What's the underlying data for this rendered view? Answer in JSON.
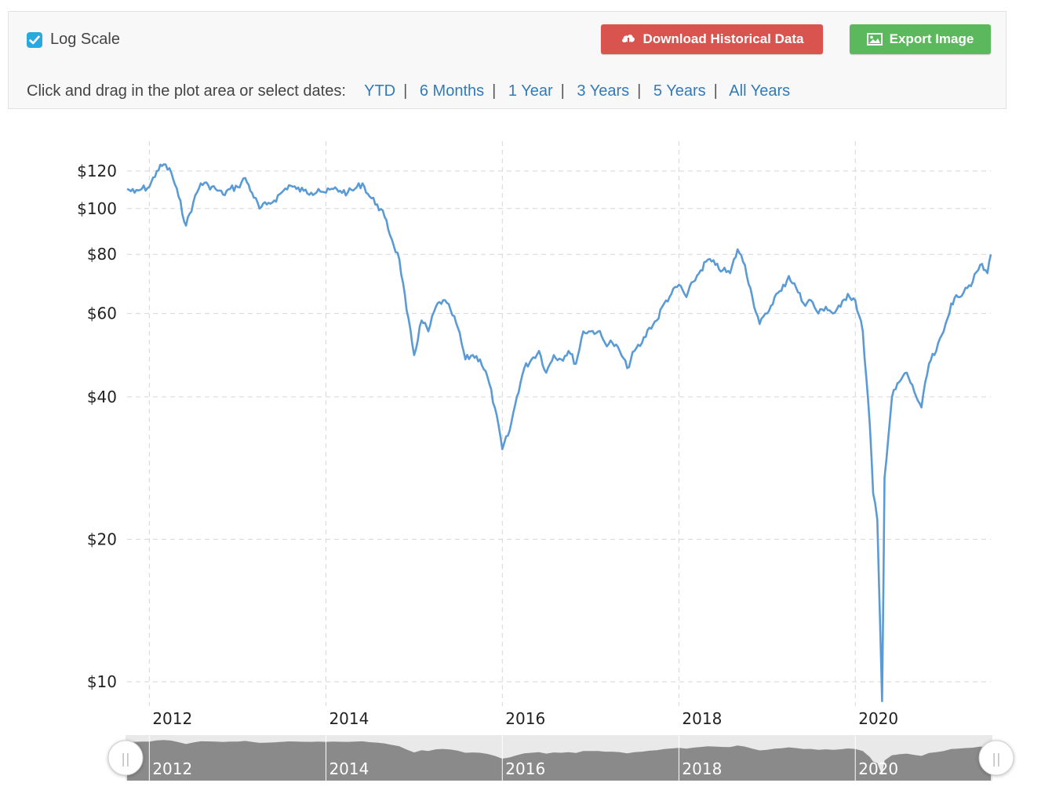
{
  "controls": {
    "log_scale_label": "Log Scale",
    "log_scale_checked": true,
    "download_label": "Download Historical Data",
    "export_label": "Export Image",
    "range_prompt": "Click and drag in the plot area or select dates:",
    "ranges": [
      "YTD",
      "6 Months",
      "1 Year",
      "3 Years",
      "5 Years",
      "All Years"
    ],
    "download_icon": "cloud-download-icon",
    "export_icon": "image-icon"
  },
  "colors": {
    "line": "#5b9bd5",
    "link": "#337ab7",
    "download_button": "#d9534f",
    "export_button": "#5cb85c",
    "checkbox": "#2aa8e0",
    "navigator_fill": "#8a8a8a",
    "grid": "#d6d6d6"
  },
  "chart_data": {
    "type": "line",
    "y_scale": "log",
    "grid": true,
    "y_ticks": [
      10,
      20,
      40,
      60,
      80,
      100,
      120
    ],
    "y_tick_labels": [
      "$10",
      "$20",
      "$40",
      "$60",
      "$80",
      "$100",
      "$120"
    ],
    "x_ticks": [
      "2012",
      "2014",
      "2016",
      "2018",
      "2020"
    ],
    "xlim": [
      "2011-10-01",
      "2021-07-15"
    ],
    "series": [
      {
        "x": [
          "2011-10-01",
          "2011-11-01",
          "2011-12-01",
          "2012-01-01",
          "2012-02-01",
          "2012-03-01",
          "2012-04-01",
          "2012-05-01",
          "2012-06-01",
          "2012-07-01",
          "2012-08-01",
          "2012-09-01",
          "2012-10-01",
          "2012-11-01",
          "2012-12-01",
          "2013-01-01",
          "2013-02-01",
          "2013-03-01",
          "2013-04-01",
          "2013-05-01",
          "2013-06-01",
          "2013-07-01",
          "2013-08-01",
          "2013-09-01",
          "2013-10-01",
          "2013-11-01",
          "2013-12-01",
          "2014-01-01",
          "2014-02-01",
          "2014-03-01",
          "2014-04-01",
          "2014-05-01",
          "2014-06-01",
          "2014-07-01",
          "2014-08-01",
          "2014-09-01",
          "2014-10-01",
          "2014-11-01",
          "2014-12-01",
          "2015-01-01",
          "2015-02-01",
          "2015-03-01",
          "2015-04-01",
          "2015-05-01",
          "2015-06-01",
          "2015-07-01",
          "2015-08-01",
          "2015-09-01",
          "2015-10-01",
          "2015-11-01",
          "2015-12-01",
          "2016-01-01",
          "2016-02-01",
          "2016-03-01",
          "2016-04-01",
          "2016-05-01",
          "2016-06-01",
          "2016-07-01",
          "2016-08-01",
          "2016-09-01",
          "2016-10-01",
          "2016-11-01",
          "2016-12-01",
          "2017-01-01",
          "2017-02-01",
          "2017-03-01",
          "2017-04-01",
          "2017-05-01",
          "2017-06-01",
          "2017-07-01",
          "2017-08-01",
          "2017-09-01",
          "2017-10-01",
          "2017-11-01",
          "2017-12-01",
          "2018-01-01",
          "2018-02-01",
          "2018-03-01",
          "2018-04-01",
          "2018-05-01",
          "2018-06-01",
          "2018-07-01",
          "2018-08-01",
          "2018-09-01",
          "2018-10-01",
          "2018-11-01",
          "2018-12-01",
          "2019-01-01",
          "2019-02-01",
          "2019-03-01",
          "2019-04-01",
          "2019-05-01",
          "2019-06-01",
          "2019-07-01",
          "2019-08-01",
          "2019-09-01",
          "2019-10-01",
          "2019-11-01",
          "2019-12-01",
          "2020-01-01",
          "2020-02-01",
          "2020-03-01",
          "2020-03-15",
          "2020-04-01",
          "2020-04-21",
          "2020-05-01",
          "2020-06-01",
          "2020-07-01",
          "2020-08-01",
          "2020-09-01",
          "2020-10-01",
          "2020-11-01",
          "2020-12-01",
          "2021-01-01",
          "2021-02-01",
          "2021-03-01",
          "2021-04-01",
          "2021-05-01",
          "2021-06-01",
          "2021-07-01",
          "2021-07-15"
        ],
        "y": [
          110,
          108,
          110,
          111,
          120,
          124,
          119,
          106,
          92,
          103,
          113,
          112,
          110,
          107,
          110,
          111,
          116,
          108,
          100,
          102,
          104,
          108,
          112,
          110,
          109,
          108,
          110,
          108,
          110,
          109,
          108,
          110,
          113,
          106,
          102,
          96,
          86,
          78,
          61,
          49,
          58,
          55,
          62,
          64,
          61,
          56,
          48,
          49,
          48,
          44,
          38,
          31,
          34,
          40,
          46,
          48,
          50,
          45,
          49,
          48,
          50,
          47,
          55,
          55,
          55,
          52,
          52,
          50,
          46,
          50,
          52,
          56,
          58,
          63,
          66,
          69,
          65,
          70,
          74,
          78,
          76,
          74,
          73,
          82,
          76,
          65,
          57,
          60,
          65,
          67,
          72,
          68,
          63,
          64,
          60,
          62,
          60,
          62,
          66,
          64,
          55,
          35,
          25,
          22,
          9.1,
          27,
          40,
          43,
          45,
          41,
          38,
          47,
          50,
          55,
          63,
          65,
          68,
          70,
          76,
          73,
          80
        ]
      }
    ]
  },
  "navigator": {
    "year_labels": [
      "2012",
      "2014",
      "2016",
      "2018",
      "2020"
    ],
    "handle_left_label": "||",
    "handle_right_label": "||"
  }
}
